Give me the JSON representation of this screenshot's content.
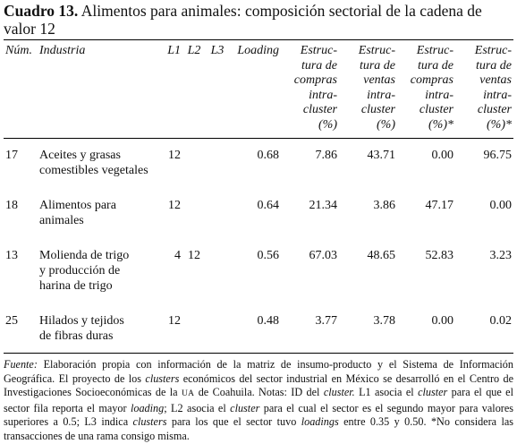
{
  "header": {
    "label": "Cuadro 13.",
    "title": "Alimentos para animales: composición sectorial de la cadena de valor 12"
  },
  "table": {
    "columns": [
      [
        "Núm."
      ],
      [
        "Industria"
      ],
      [
        "L1"
      ],
      [
        "L2"
      ],
      [
        "L3"
      ],
      [
        "Loading"
      ],
      [
        "Estruc-",
        "tura de",
        "compras",
        "intra-",
        "cluster",
        "(%)"
      ],
      [
        "Estruc-",
        "tura de",
        "ventas",
        "intra-",
        "cluster",
        "(%)"
      ],
      [
        "Estruc-",
        "tura de",
        "compras",
        "intra-",
        "cluster",
        "(%)*"
      ],
      [
        "Estruc-",
        "tura de",
        "ventas",
        "intra-",
        "cluster",
        "(%)*"
      ]
    ],
    "rows": [
      {
        "num": "17",
        "industria": [
          "Aceites y grasas",
          "comestibles vegetales"
        ],
        "l1": "12",
        "loading": "0.68",
        "compras": "7.86",
        "ventas": "43.71",
        "compras_x": "0.00",
        "ventas_x": "96.75"
      },
      {
        "num": "18",
        "industria": [
          "Alimentos para",
          "animales"
        ],
        "l1": "12",
        "loading": "0.64",
        "compras": "21.34",
        "ventas": "3.86",
        "compras_x": "47.17",
        "ventas_x": "0.00"
      },
      {
        "num": "13",
        "industria": [
          "Molienda de trigo",
          "y producción de",
          "harina de trigo"
        ],
        "l1": "4",
        "l2": "12",
        "loading": "0.56",
        "compras": "67.03",
        "ventas": "48.65",
        "compras_x": "52.83",
        "ventas_x": "3.23"
      },
      {
        "num": "25",
        "industria": [
          "Hilados y tejidos",
          "de fibras duras"
        ],
        "l1": "12",
        "loading": "0.48",
        "compras": "3.77",
        "ventas": "3.78",
        "compras_x": "0.00",
        "ventas_x": "0.02"
      }
    ]
  },
  "footnote": [
    "Fuente:",
    " Elaboración propia con información de la matriz de insumo-producto y el Sistema de Información Geográfica. El proyecto de los ",
    "clusters",
    " económicos del sector industrial en México se desarrolló en el Centro de Investigaciones Socioeconómicas de la ",
    "UA",
    " de Coahuila. Notas: ID del ",
    "cluster.",
    " L1 asocia el ",
    "cluster",
    " para el que el sector fila reporta el mayor ",
    "loading",
    "; L2 asocia el ",
    "cluster",
    " para el cual el sector es el segundo mayor para valores superiores a 0.5; L3 indica ",
    "clusters",
    " para los que el sector tuvo ",
    "loadings",
    " entre 0.35 y 0.50. *No considera las transacciones de una rama consigo misma."
  ]
}
